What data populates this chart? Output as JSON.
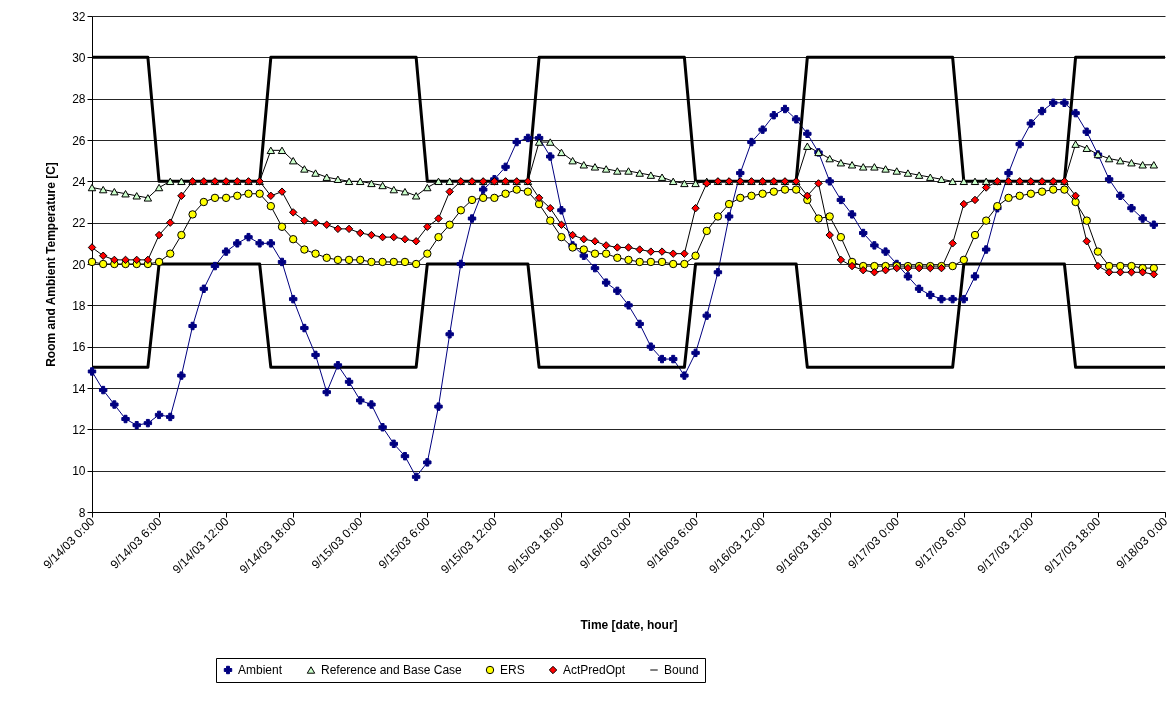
{
  "chart_data": {
    "type": "line",
    "xlabel": "Time [date, hour]",
    "ylabel": "Room and Ambient Temperature [C]",
    "xlim": [
      "--09-14T00:00",
      "--09-18T00:00"
    ],
    "ylim": [
      8,
      32
    ],
    "xticks": [
      {
        "value": "--09-14T00:00",
        "label": "9/14/03 0:00"
      },
      {
        "value": "--09-14T06:00",
        "label": "9/14/03 6:00"
      },
      {
        "value": "--09-14T12:00",
        "label": "9/14/03 12:00"
      },
      {
        "value": "--09-14T18:00",
        "label": "9/14/03 18:00"
      },
      {
        "value": "--09-15T00:00",
        "label": "9/15/03 0:00"
      },
      {
        "value": "--09-15T06:00",
        "label": "9/15/03 6:00"
      },
      {
        "value": "--09-15T12:00",
        "label": "9/15/03 12:00"
      },
      {
        "value": "--09-15T18:00",
        "label": "9/15/03 18:00"
      },
      {
        "value": "--09-16T00:00",
        "label": "9/16/03 0:00"
      },
      {
        "value": "--09-16T06:00",
        "label": "9/16/03 6:00"
      },
      {
        "value": "--09-16T12:00",
        "label": "9/16/03 12:00"
      },
      {
        "value": "--09-16T18:00",
        "label": "9/16/03 18:00"
      },
      {
        "value": "--09-17T00:00",
        "label": "9/17/03 0:00"
      },
      {
        "value": "--09-17T06:00",
        "label": "9/17/03 6:00"
      },
      {
        "value": "--09-17T12:00",
        "label": "9/17/03 12:00"
      },
      {
        "value": "--09-17T18:00",
        "label": "9/17/03 18:00"
      },
      {
        "value": "--09-18T00:00",
        "label": "9/18/03 0:00"
      }
    ],
    "yticks": [
      8,
      10,
      12,
      14,
      16,
      18,
      20,
      22,
      24,
      26,
      28,
      30,
      32
    ],
    "grid": "y",
    "legend": "bottom",
    "x": [
      "--09-14T00:00",
      "--09-14T01:00",
      "--09-14T02:00",
      "--09-14T03:00",
      "--09-14T04:00",
      "--09-14T05:00",
      "--09-14T06:00",
      "--09-14T07:00",
      "--09-14T08:00",
      "--09-14T09:00",
      "--09-14T10:00",
      "--09-14T11:00",
      "--09-14T12:00",
      "--09-14T13:00",
      "--09-14T14:00",
      "--09-14T15:00",
      "--09-14T16:00",
      "--09-14T17:00",
      "--09-14T18:00",
      "--09-14T19:00",
      "--09-14T20:00",
      "--09-14T21:00",
      "--09-14T22:00",
      "--09-14T23:00",
      "--09-15T00:00",
      "--09-15T01:00",
      "--09-15T02:00",
      "--09-15T03:00",
      "--09-15T04:00",
      "--09-15T05:00",
      "--09-15T06:00",
      "--09-15T07:00",
      "--09-15T08:00",
      "--09-15T09:00",
      "--09-15T10:00",
      "--09-15T11:00",
      "--09-15T12:00",
      "--09-15T13:00",
      "--09-15T14:00",
      "--09-15T15:00",
      "--09-15T16:00",
      "--09-15T17:00",
      "--09-15T18:00",
      "--09-15T19:00",
      "--09-15T20:00",
      "--09-15T21:00",
      "--09-15T22:00",
      "--09-15T23:00",
      "--09-16T00:00",
      "--09-16T01:00",
      "--09-16T02:00",
      "--09-16T03:00",
      "--09-16T04:00",
      "--09-16T05:00",
      "--09-16T06:00",
      "--09-16T07:00",
      "--09-16T08:00",
      "--09-16T09:00",
      "--09-16T10:00",
      "--09-16T11:00",
      "--09-16T12:00",
      "--09-16T13:00",
      "--09-16T14:00",
      "--09-16T15:00",
      "--09-16T16:00",
      "--09-16T17:00",
      "--09-16T18:00",
      "--09-16T19:00",
      "--09-16T20:00",
      "--09-16T21:00",
      "--09-16T22:00",
      "--09-16T23:00",
      "--09-17T00:00",
      "--09-17T01:00",
      "--09-17T02:00",
      "--09-17T03:00",
      "--09-17T04:00",
      "--09-17T05:00",
      "--09-17T06:00",
      "--09-17T07:00",
      "--09-17T08:00",
      "--09-17T09:00",
      "--09-17T10:00",
      "--09-17T11:00",
      "--09-17T12:00",
      "--09-17T13:00",
      "--09-17T14:00",
      "--09-17T15:00",
      "--09-17T16:00",
      "--09-17T17:00",
      "--09-17T18:00",
      "--09-17T19:00",
      "--09-17T20:00",
      "--09-17T21:00",
      "--09-17T22:00",
      "--09-17T23:00"
    ],
    "series": [
      {
        "name": "Ambient",
        "color": "#000080",
        "marker": "cross",
        "values": [
          14.8,
          13.9,
          13.2,
          12.5,
          12.2,
          12.3,
          12.7,
          12.6,
          14.6,
          17.0,
          18.8,
          19.9,
          20.6,
          21.0,
          21.3,
          21.0,
          21.0,
          20.1,
          18.3,
          16.9,
          15.6,
          13.8,
          15.1,
          14.3,
          13.4,
          13.2,
          12.1,
          11.3,
          10.7,
          9.7,
          10.4,
          13.1,
          16.6,
          20.0,
          22.2,
          23.6,
          24.1,
          24.7,
          25.9,
          26.1,
          26.1,
          25.2,
          22.6,
          20.9,
          20.4,
          19.8,
          19.1,
          18.7,
          18.0,
          17.1,
          16.0,
          15.4,
          15.4,
          14.6,
          15.7,
          17.5,
          19.6,
          22.3,
          24.4,
          25.9,
          26.5,
          27.2,
          27.5,
          27.0,
          26.3,
          25.4,
          24.0,
          23.1,
          22.4,
          21.5,
          20.9,
          20.6,
          20.0,
          19.4,
          18.8,
          18.5,
          18.3,
          18.3,
          18.3,
          19.4,
          20.7,
          22.7,
          24.4,
          25.8,
          26.8,
          27.4,
          27.8,
          27.8,
          27.3,
          26.4,
          25.3,
          24.1,
          23.3,
          22.7,
          22.2,
          21.9
        ]
      },
      {
        "name": "Reference and Base Case",
        "color": "#ccffcc",
        "marker": "triangle",
        "values": [
          23.7,
          23.6,
          23.5,
          23.4,
          23.3,
          23.2,
          23.7,
          24.0,
          24.0,
          24.0,
          24.0,
          24.0,
          24.0,
          24.0,
          24.0,
          24.0,
          25.5,
          25.5,
          25.0,
          24.6,
          24.4,
          24.2,
          24.1,
          24.0,
          24.0,
          23.9,
          23.8,
          23.6,
          23.5,
          23.3,
          23.7,
          24.0,
          24.0,
          24.0,
          24.0,
          24.0,
          24.0,
          24.0,
          24.0,
          24.0,
          25.9,
          25.9,
          25.4,
          25.0,
          24.8,
          24.7,
          24.6,
          24.5,
          24.5,
          24.4,
          24.3,
          24.2,
          24.0,
          23.9,
          23.9,
          24.0,
          24.0,
          24.0,
          24.0,
          24.0,
          24.0,
          24.0,
          24.0,
          24.0,
          25.7,
          25.4,
          25.1,
          24.9,
          24.8,
          24.7,
          24.7,
          24.6,
          24.5,
          24.4,
          24.3,
          24.2,
          24.1,
          24.0,
          24.0,
          24.0,
          24.0,
          24.0,
          24.0,
          24.0,
          24.0,
          24.0,
          24.0,
          24.0,
          25.8,
          25.6,
          25.3,
          25.1,
          25.0,
          24.9,
          24.8,
          24.8
        ]
      },
      {
        "name": "ERS",
        "color": "#ffff00",
        "marker": "circle",
        "values": [
          20.1,
          20.0,
          20.0,
          20.0,
          20.0,
          20.0,
          20.1,
          20.5,
          21.4,
          22.4,
          23.0,
          23.2,
          23.2,
          23.3,
          23.4,
          23.4,
          22.8,
          21.8,
          21.2,
          20.7,
          20.5,
          20.3,
          20.2,
          20.2,
          20.2,
          20.1,
          20.1,
          20.1,
          20.1,
          20.0,
          20.5,
          21.3,
          21.9,
          22.6,
          23.1,
          23.2,
          23.2,
          23.4,
          23.6,
          23.5,
          22.9,
          22.1,
          21.3,
          20.8,
          20.7,
          20.5,
          20.5,
          20.3,
          20.2,
          20.1,
          20.1,
          20.1,
          20.0,
          20.0,
          20.4,
          21.6,
          22.3,
          22.9,
          23.2,
          23.3,
          23.4,
          23.5,
          23.6,
          23.6,
          23.1,
          22.2,
          22.3,
          21.3,
          20.1,
          19.9,
          19.9,
          19.9,
          19.9,
          19.9,
          19.9,
          19.9,
          19.9,
          19.9,
          20.2,
          21.4,
          22.1,
          22.8,
          23.2,
          23.3,
          23.4,
          23.5,
          23.6,
          23.6,
          23.0,
          22.1,
          20.6,
          19.9,
          19.9,
          19.9,
          19.8,
          19.8
        ]
      },
      {
        "name": "ActPredOpt",
        "color": "#ff0000",
        "marker": "diamond",
        "values": [
          20.8,
          20.4,
          20.2,
          20.2,
          20.2,
          20.2,
          21.4,
          22.0,
          23.3,
          24.0,
          24.0,
          24.0,
          24.0,
          24.0,
          24.0,
          24.0,
          23.3,
          23.5,
          22.5,
          22.1,
          22.0,
          21.9,
          21.7,
          21.7,
          21.5,
          21.4,
          21.3,
          21.3,
          21.2,
          21.1,
          21.8,
          22.2,
          23.5,
          24.0,
          24.0,
          24.0,
          24.0,
          24.0,
          24.0,
          24.0,
          23.2,
          22.7,
          21.9,
          21.4,
          21.2,
          21.1,
          20.9,
          20.8,
          20.8,
          20.7,
          20.6,
          20.6,
          20.5,
          20.5,
          22.7,
          23.9,
          24.0,
          24.0,
          24.0,
          24.0,
          24.0,
          24.0,
          24.0,
          24.0,
          23.3,
          23.9,
          21.4,
          20.2,
          19.9,
          19.7,
          19.6,
          19.7,
          19.8,
          19.8,
          19.8,
          19.8,
          19.8,
          21.0,
          22.9,
          23.1,
          23.7,
          24.0,
          24.0,
          24.0,
          24.0,
          24.0,
          24.0,
          24.0,
          23.3,
          21.1,
          19.9,
          19.6,
          19.6,
          19.6,
          19.6,
          19.5
        ]
      },
      {
        "name": "Bound",
        "color": "#000000",
        "marker": "none",
        "x": [
          "--09-14T00:00",
          "--09-14T05:00",
          "--09-14T06:00",
          "--09-14T15:00",
          "--09-14T16:00",
          "--09-15T05:00",
          "--09-15T06:00",
          "--09-15T15:00",
          "--09-15T16:00",
          "--09-16T05:00",
          "--09-16T06:00",
          "--09-16T15:00",
          "--09-16T16:00",
          "--09-17T05:00",
          "--09-17T06:00",
          "--09-17T15:00",
          "--09-17T16:00",
          "--09-18T00:00"
        ],
        "values": [
          30,
          30,
          24,
          24,
          30,
          30,
          24,
          24,
          30,
          30,
          24,
          24,
          30,
          30,
          24,
          24,
          30,
          30
        ]
      },
      {
        "color": "#000000",
        "marker": "none",
        "x": [
          "--09-14T00:00",
          "--09-14T05:00",
          "--09-14T06:00",
          "--09-14T15:00",
          "--09-14T16:00",
          "--09-15T05:00",
          "--09-15T06:00",
          "--09-15T15:00",
          "--09-15T16:00",
          "--09-16T05:00",
          "--09-16T06:00",
          "--09-16T15:00",
          "--09-16T16:00",
          "--09-17T05:00",
          "--09-17T06:00",
          "--09-17T15:00",
          "--09-17T16:00",
          "--09-18T00:00"
        ],
        "values": [
          15,
          15,
          20,
          20,
          15,
          15,
          20,
          20,
          15,
          15,
          20,
          20,
          15,
          15,
          20,
          20,
          15,
          15
        ]
      }
    ]
  }
}
